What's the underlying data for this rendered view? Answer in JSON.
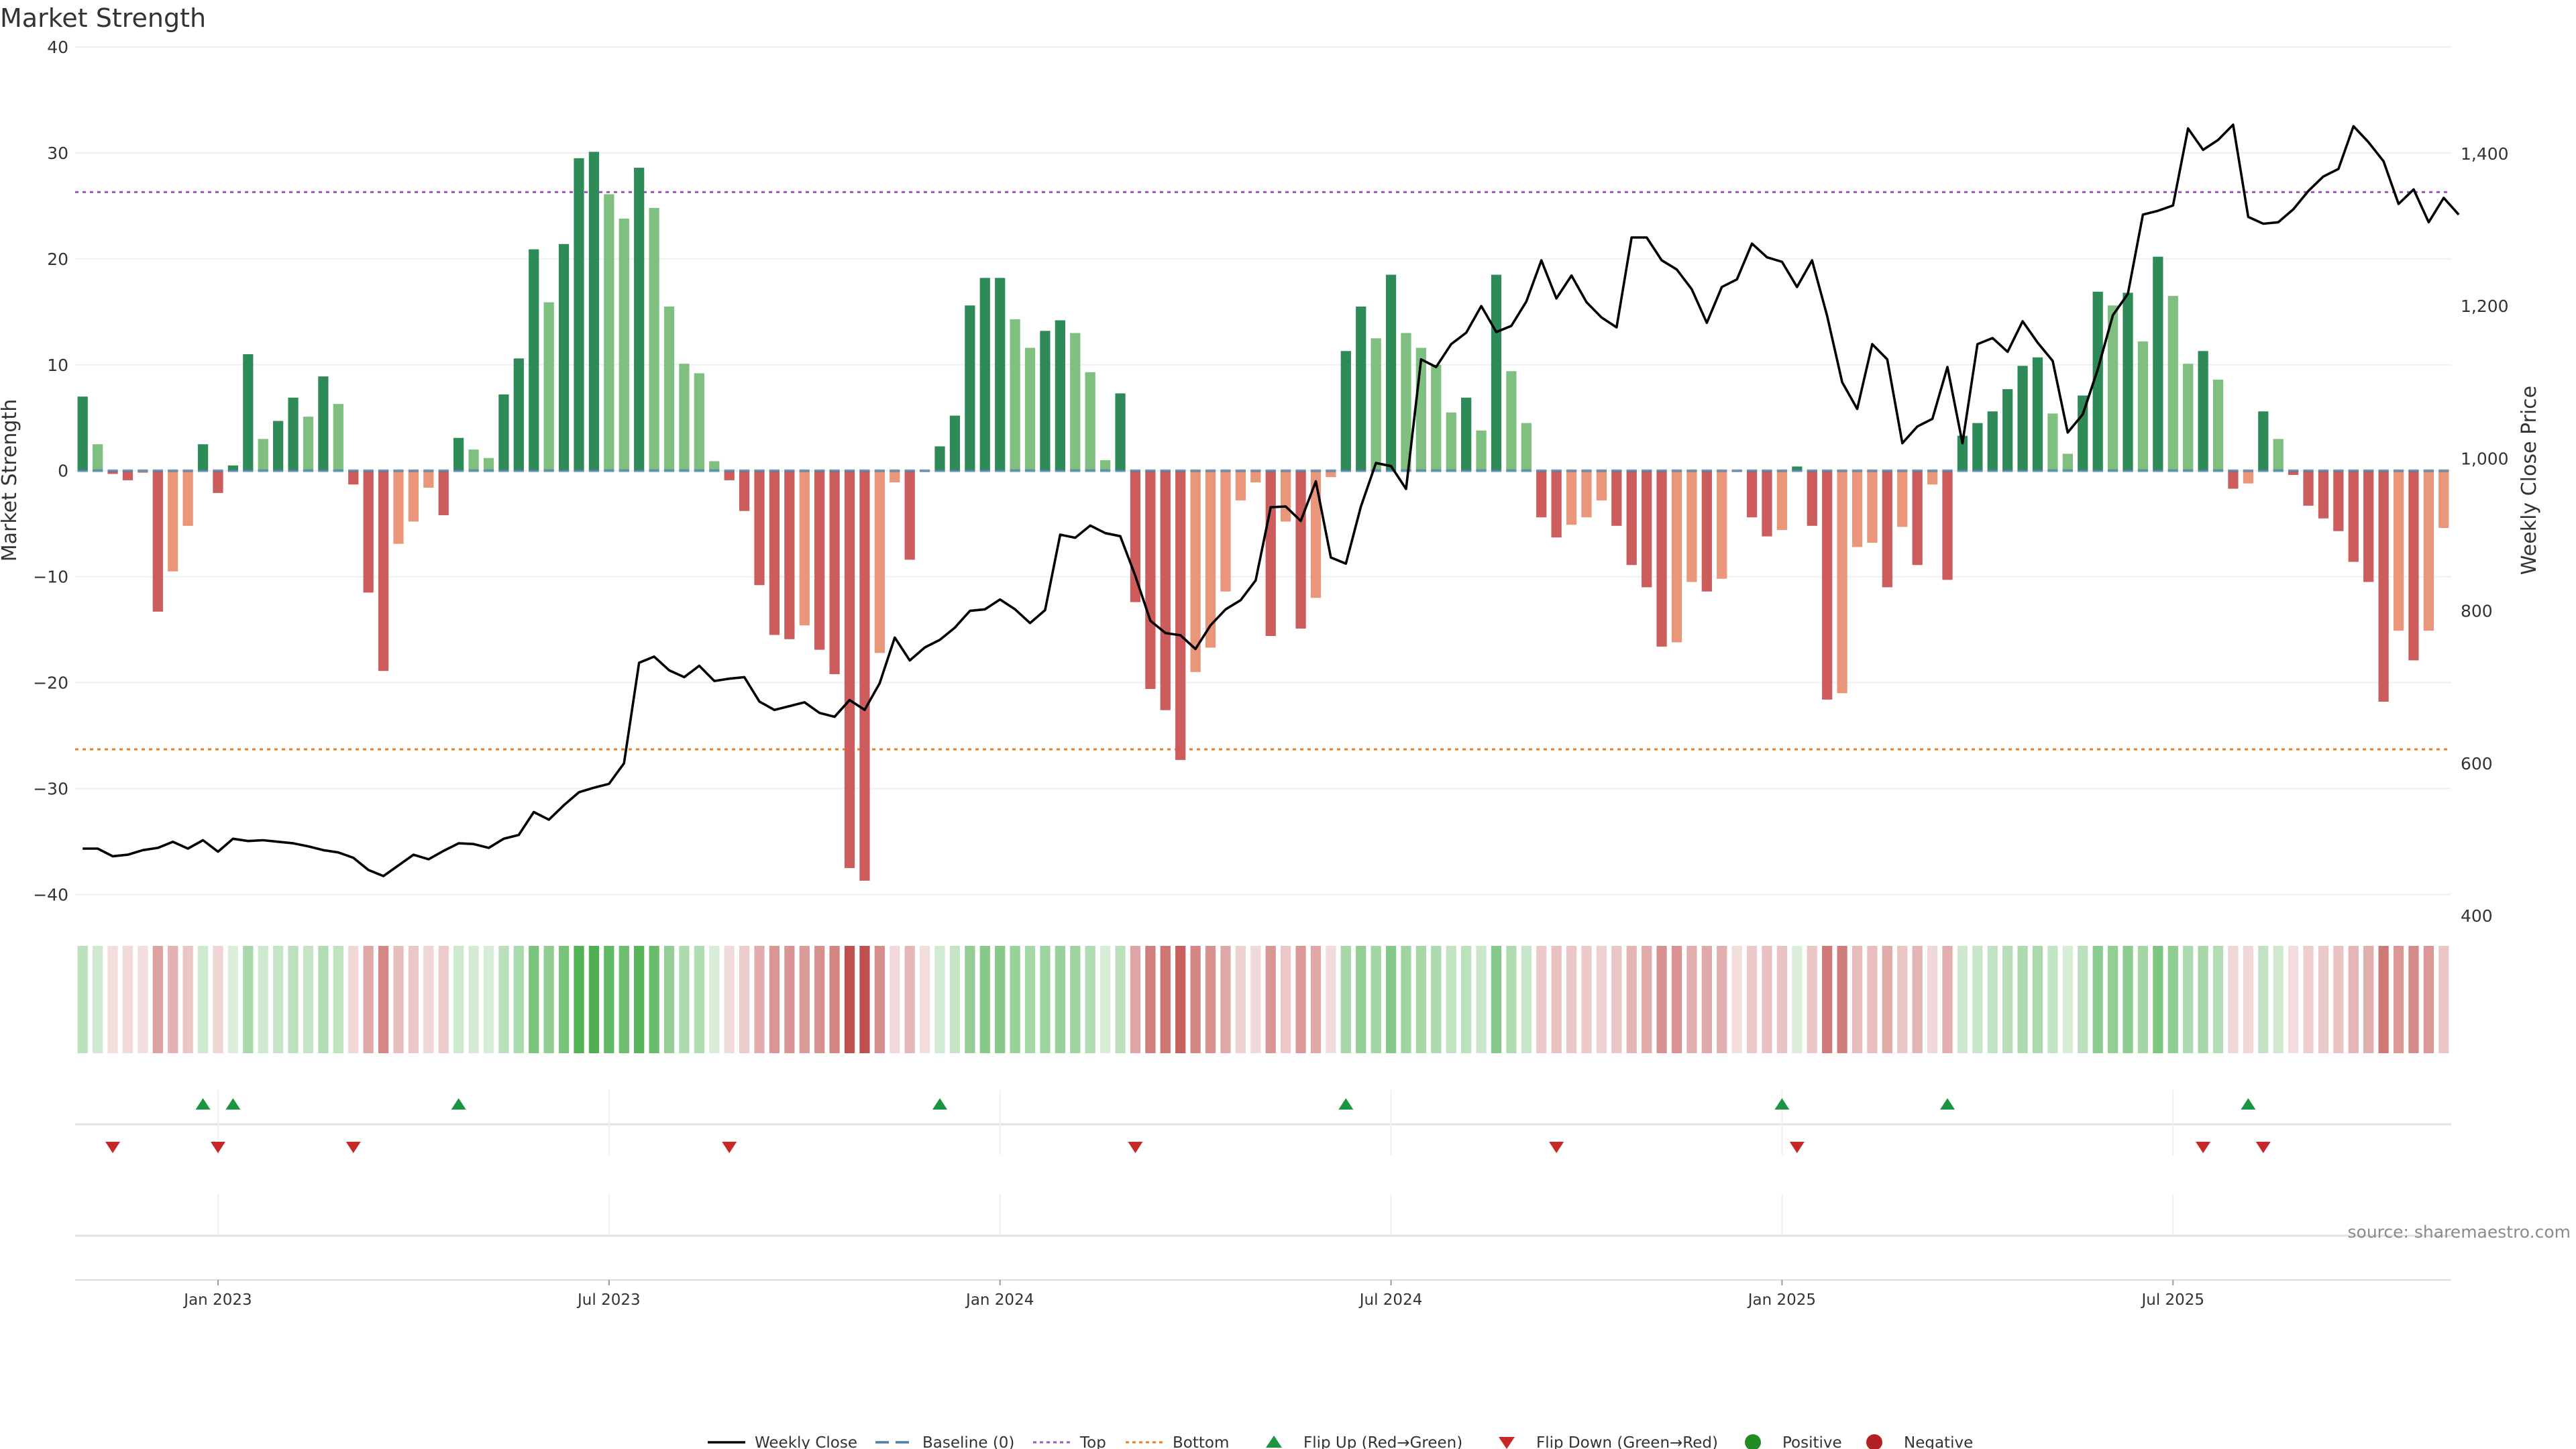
{
  "chart_data": {
    "type": "bar",
    "title": "Market Strength",
    "ylabel": "Market Strength",
    "y2label": "Weekly Close Price",
    "ylim": [
      -42,
      40
    ],
    "y2lim": [
      400,
      1540
    ],
    "yticks": [
      40,
      30,
      20,
      10,
      0,
      -10,
      -20,
      -30,
      -40
    ],
    "y2ticks": [
      400,
      600,
      800,
      1000,
      1200,
      1400
    ],
    "y2tick_labels": [
      "400",
      "600",
      "800",
      "1,000",
      "1,200",
      "1,400"
    ],
    "x_ticks": [
      "Jan 2023",
      "Jul 2023",
      "Jan 2024",
      "Jul 2024",
      "Jan 2025",
      "Jul 2025"
    ],
    "x_tick_positions": [
      9,
      35,
      61,
      87,
      113,
      139
    ],
    "top_line": 26.3,
    "bottom_line": -26.3,
    "strength": [
      7.0,
      2.5,
      -0.3,
      -0.9,
      -0.2,
      -13.3,
      -9.5,
      -5.2,
      2.5,
      -2.1,
      0.5,
      11.0,
      3.0,
      4.7,
      6.9,
      5.1,
      8.9,
      6.3,
      -1.3,
      -11.5,
      -18.9,
      -6.9,
      -4.8,
      -1.6,
      -4.2,
      3.1,
      2.0,
      1.2,
      7.2,
      10.6,
      20.9,
      15.9,
      21.4,
      29.5,
      30.1,
      26.1,
      23.8,
      28.6,
      24.8,
      15.5,
      10.1,
      9.2,
      0.9,
      -0.9,
      -3.8,
      -10.8,
      -15.5,
      -15.9,
      -14.6,
      -16.9,
      -19.2,
      -37.5,
      -38.7,
      -17.2,
      -1.1,
      -8.4,
      -0.1,
      2.3,
      5.2,
      15.6,
      18.2,
      18.2,
      14.3,
      11.6,
      13.2,
      14.2,
      13.0,
      9.3,
      1.0,
      7.3,
      -12.4,
      -20.6,
      -22.6,
      -27.3,
      -19.0,
      -16.7,
      -11.4,
      -2.8,
      -1.1,
      -15.6,
      -4.8,
      -14.9,
      -12.0,
      -0.6,
      11.3,
      15.5,
      12.5,
      18.5,
      13.0,
      11.6,
      10.0,
      5.5,
      6.9,
      3.8,
      18.5,
      9.4,
      4.5,
      -4.4,
      -6.3,
      -5.1,
      -4.4,
      -2.8,
      -5.2,
      -8.9,
      -11.0,
      -16.6,
      -16.2,
      -10.5,
      -11.4,
      -10.2,
      -0.1,
      -4.4,
      -6.2,
      -5.6,
      0.4,
      -5.2,
      -21.6,
      -21.0,
      -7.2,
      -6.8,
      -11.0,
      -5.3,
      -8.9,
      -1.3,
      -10.3,
      3.3,
      4.5,
      5.6,
      7.7,
      9.9,
      10.7,
      5.4,
      1.6,
      7.1,
      16.9,
      15.6,
      16.8,
      12.2,
      20.2,
      16.5,
      10.1,
      11.3,
      8.6,
      -1.7,
      -1.2,
      5.6,
      3.0,
      -0.4,
      -3.3,
      -4.5,
      -5.7,
      -8.6,
      -10.5,
      -21.8,
      -15.1,
      -17.9,
      -15.1,
      -5.4
    ],
    "weekly_close": [
      488,
      488,
      478,
      480,
      486,
      489,
      497,
      488,
      499,
      484,
      501,
      498,
      499,
      497,
      495,
      491,
      486,
      483,
      476,
      460,
      452,
      466,
      480,
      474,
      485,
      495,
      494,
      489,
      501,
      506,
      536,
      526,
      545,
      562,
      568,
      573,
      600,
      732,
      740,
      722,
      713,
      728,
      708,
      711,
      713,
      681,
      670,
      675,
      680,
      666,
      661,
      683,
      670,
      705,
      765,
      735,
      752,
      762,
      778,
      800,
      802,
      815,
      802,
      784,
      801,
      900,
      896,
      912,
      902,
      898,
      846,
      787,
      771,
      768,
      750,
      781,
      802,
      814,
      840,
      936,
      937,
      918,
      970,
      870,
      862,
      937,
      994,
      990,
      960,
      1130,
      1120,
      1150,
      1165,
      1200,
      1166,
      1174,
      1206,
      1260,
      1210,
      1240,
      1205,
      1185,
      1172,
      1290,
      1290,
      1260,
      1248,
      1222,
      1178,
      1225,
      1235,
      1282,
      1264,
      1258,
      1225,
      1260,
      1187,
      1100,
      1065,
      1150,
      1130,
      1020,
      1042,
      1052,
      1120,
      1020,
      1150,
      1158,
      1140,
      1180,
      1152,
      1128,
      1034,
      1058,
      1117,
      1188,
      1216,
      1320,
      1325,
      1332,
      1433,
      1405,
      1418,
      1438,
      1317,
      1308,
      1310,
      1327,
      1351,
      1370,
      1380,
      1436,
      1415,
      1390,
      1334,
      1353,
      1310,
      1342,
      1320
    ],
    "flip_up": [
      8,
      10,
      25,
      57,
      84,
      113,
      124,
      144
    ],
    "flip_down": [
      2,
      9,
      18,
      43,
      70,
      98,
      114,
      141,
      145
    ],
    "colors": {
      "strong_green": "#2e8b57",
      "light_green": "#7fbf7f",
      "strong_red": "#cd5c5c",
      "light_red": "#e9967a",
      "close_line": "#000000",
      "top_line": "#9b59b6",
      "bottom_line": "#e67e22",
      "flip_up": "#1a9641",
      "flip_down": "#c62828",
      "positive": "#228b22",
      "negative": "#b22222"
    },
    "legend_placement": "bottom-center",
    "legend": [
      {
        "label": "Weekly Close",
        "marker": "solid-line"
      },
      {
        "label": "Baseline (0)",
        "marker": "dashed-line"
      },
      {
        "label": "Top",
        "marker": "dotted-purple"
      },
      {
        "label": "Bottom",
        "marker": "dotted-orange"
      },
      {
        "label": "Flip Up (Red→Green)",
        "marker": "triangle-up"
      },
      {
        "label": "Flip Down (Green→Red)",
        "marker": "triangle-down"
      },
      {
        "label": "Positive",
        "marker": "circle-green"
      },
      {
        "label": "Negative",
        "marker": "circle-red"
      }
    ],
    "source": "source: sharemaestro.com",
    "grid": true
  }
}
